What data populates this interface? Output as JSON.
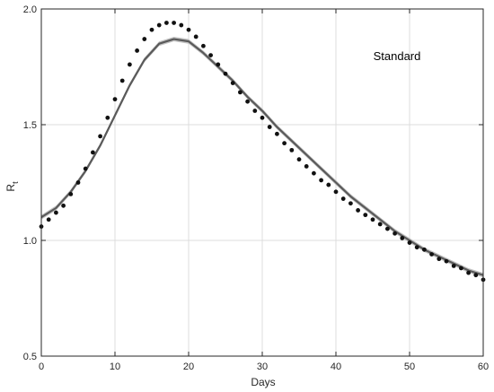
{
  "chart_data": {
    "type": "line",
    "title": "",
    "xlabel": "Days",
    "ylabel": "R",
    "ylabel_subscript": "t",
    "xlim": [
      0,
      60
    ],
    "ylim": [
      0.5,
      2.0
    ],
    "xticks": [
      0,
      10,
      20,
      30,
      40,
      50,
      60
    ],
    "yticks": [
      0.5,
      1.0,
      1.5,
      2.0
    ],
    "xtick_labels": [
      "0",
      "10",
      "20",
      "30",
      "40",
      "50",
      "60"
    ],
    "ytick_labels": [
      "0.5",
      "1.0",
      "1.5",
      "2.0"
    ],
    "grid": true,
    "annotation": "Standard",
    "colors": {
      "line": "#5a5a5a",
      "band": "#bdbdbd",
      "dots": "#111111",
      "grid": "#dcdcdc",
      "axis": "#262626"
    },
    "series": [
      {
        "style": "line-with-band",
        "x": [
          0,
          2,
          4,
          6,
          8,
          10,
          12,
          14,
          16,
          18,
          20,
          22,
          24,
          26,
          28,
          30,
          32,
          34,
          36,
          38,
          40,
          42,
          44,
          46,
          48,
          50,
          52,
          54,
          56,
          58,
          60
        ],
        "y": [
          1.1,
          1.14,
          1.21,
          1.3,
          1.41,
          1.54,
          1.67,
          1.78,
          1.85,
          1.87,
          1.86,
          1.81,
          1.75,
          1.69,
          1.62,
          1.56,
          1.49,
          1.43,
          1.37,
          1.31,
          1.25,
          1.19,
          1.14,
          1.09,
          1.04,
          1.0,
          0.96,
          0.93,
          0.9,
          0.87,
          0.85
        ],
        "y_lower": [
          1.09,
          1.13,
          1.2,
          1.29,
          1.4,
          1.53,
          1.66,
          1.77,
          1.84,
          1.86,
          1.85,
          1.8,
          1.74,
          1.68,
          1.61,
          1.55,
          1.48,
          1.42,
          1.36,
          1.3,
          1.24,
          1.18,
          1.13,
          1.08,
          1.03,
          0.99,
          0.95,
          0.92,
          0.89,
          0.86,
          0.84
        ],
        "y_upper": [
          1.11,
          1.15,
          1.22,
          1.31,
          1.42,
          1.55,
          1.68,
          1.79,
          1.86,
          1.88,
          1.87,
          1.82,
          1.76,
          1.7,
          1.63,
          1.57,
          1.5,
          1.44,
          1.38,
          1.32,
          1.26,
          1.2,
          1.15,
          1.1,
          1.05,
          1.01,
          0.97,
          0.94,
          0.91,
          0.88,
          0.86
        ]
      },
      {
        "style": "dots",
        "x": [
          0,
          1,
          2,
          3,
          4,
          5,
          6,
          7,
          8,
          9,
          10,
          11,
          12,
          13,
          14,
          15,
          16,
          17,
          18,
          19,
          20,
          21,
          22,
          23,
          24,
          25,
          26,
          27,
          28,
          29,
          30,
          31,
          32,
          33,
          34,
          35,
          36,
          37,
          38,
          39,
          40,
          41,
          42,
          43,
          44,
          45,
          46,
          47,
          48,
          49,
          50,
          51,
          52,
          53,
          54,
          55,
          56,
          57,
          58,
          59,
          60
        ],
        "y": [
          1.06,
          1.09,
          1.12,
          1.15,
          1.2,
          1.25,
          1.31,
          1.38,
          1.45,
          1.53,
          1.61,
          1.69,
          1.76,
          1.82,
          1.87,
          1.91,
          1.93,
          1.94,
          1.94,
          1.93,
          1.91,
          1.88,
          1.84,
          1.8,
          1.76,
          1.72,
          1.68,
          1.64,
          1.6,
          1.56,
          1.53,
          1.49,
          1.46,
          1.42,
          1.39,
          1.35,
          1.32,
          1.29,
          1.26,
          1.24,
          1.21,
          1.18,
          1.16,
          1.13,
          1.11,
          1.09,
          1.07,
          1.05,
          1.03,
          1.01,
          0.99,
          0.97,
          0.96,
          0.94,
          0.92,
          0.91,
          0.89,
          0.88,
          0.86,
          0.85,
          0.83
        ]
      }
    ]
  }
}
